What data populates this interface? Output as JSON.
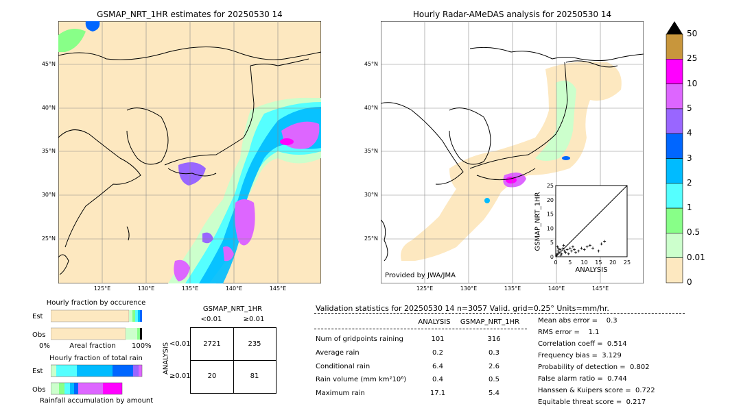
{
  "left_map": {
    "title": "GSMAP_NRT_1HR estimates for 20250530 14",
    "lat_labels": [
      "45°N",
      "40°N",
      "35°N",
      "30°N",
      "25°N"
    ],
    "lon_labels": [
      "125°E",
      "130°E",
      "135°E",
      "140°E",
      "145°E"
    ]
  },
  "right_map": {
    "title": "Hourly Radar-AMeDAS analysis for 20250530 14",
    "lat_labels": [
      "45°N",
      "40°N",
      "35°N",
      "30°N",
      "25°N"
    ],
    "lon_labels": [
      "125°E",
      "130°E",
      "135°E",
      "140°E",
      "145°E"
    ],
    "provider": "Provided by JWA/JMA"
  },
  "colorbar": {
    "labels": [
      "50",
      "25",
      "10",
      "5",
      "4",
      "3",
      "2",
      "1",
      "0.5",
      "0.01",
      "0"
    ],
    "colors": [
      "#c8963c",
      "#ff00ff",
      "#dd66ff",
      "#9966ff",
      "#0066ff",
      "#00bbff",
      "#55ffff",
      "#88ff88",
      "#ccffcc",
      "#fde8c0"
    ]
  },
  "scatter": {
    "xlabel": "ANALYSIS",
    "ylabel": "GSMAP_NRT_1HR",
    "ticks": [
      "0",
      "5",
      "10",
      "15",
      "20",
      "25"
    ]
  },
  "fraction_panel": {
    "title_occ": "Hourly fraction by occurence",
    "title_total": "Hourly fraction of total rain",
    "est": "Est",
    "obs": "Obs",
    "axis_left": "0%",
    "axis_mid": "Areal fraction",
    "axis_right": "100%",
    "footer": "Rainfall accumulation by amount"
  },
  "contingency": {
    "title": "GSMAP_NRT_1HR",
    "col1": "<0.01",
    "col2": "≥0.01",
    "side": "ANALYSIS",
    "row1": "<0.01",
    "row2": "≥0.01",
    "cells": [
      "2721",
      "235",
      "20",
      "81"
    ]
  },
  "validation": {
    "header": "Validation statistics for 20250530 14  n=3057 Valid. grid=0.25° Units=mm/hr.",
    "col_analysis": "ANALYSIS",
    "col_gsmap": "GSMAP_NRT_1HR",
    "rows": [
      {
        "label": "Num of gridpoints raining",
        "a": "101",
        "g": "316"
      },
      {
        "label": "Average rain",
        "a": "0.2",
        "g": "0.3"
      },
      {
        "label": "Conditional rain",
        "a": "6.4",
        "g": "2.6"
      },
      {
        "label": "Rain volume (mm km²10⁶)",
        "a": "0.4",
        "g": "0.5"
      },
      {
        "label": "Maximum rain",
        "a": "17.1",
        "g": "5.4"
      }
    ],
    "scores": [
      "Mean abs error =    0.3",
      "RMS error =    1.1",
      "Correlation coeff =  0.514",
      "Frequency bias =  3.129",
      "Probability of detection =  0.802",
      "False alarm ratio =  0.744",
      "Hanssen & Kuipers score =  0.722",
      "Equitable threat score =  0.217"
    ]
  },
  "chart_data": {
    "type": "scatter",
    "x": [
      0.3,
      0.5,
      0.8,
      1.0,
      1.2,
      1.5,
      2.0,
      2.5,
      3.0,
      3.5,
      4.0,
      5.0,
      5.5,
      6.0,
      7.0,
      8.0,
      9.0,
      10.0,
      11.0,
      12.0,
      13.0,
      15.0,
      16.0,
      17.1,
      0.6,
      1.8,
      2.8,
      4.5,
      6.5
    ],
    "y": [
      0.5,
      1.0,
      2.0,
      3.0,
      1.5,
      2.5,
      1.0,
      3.0,
      2.0,
      1.5,
      2.5,
      3.0,
      2.0,
      3.5,
      1.5,
      2.0,
      3.0,
      2.5,
      3.5,
      4.0,
      3.0,
      2.0,
      4.5,
      5.4,
      3.5,
      0.5,
      4.0,
      1.0,
      2.5
    ],
    "xlabel": "ANALYSIS",
    "ylabel": "GSMAP_NRT_1HR",
    "xlim": [
      0,
      25
    ],
    "ylim": [
      0,
      25
    ]
  }
}
